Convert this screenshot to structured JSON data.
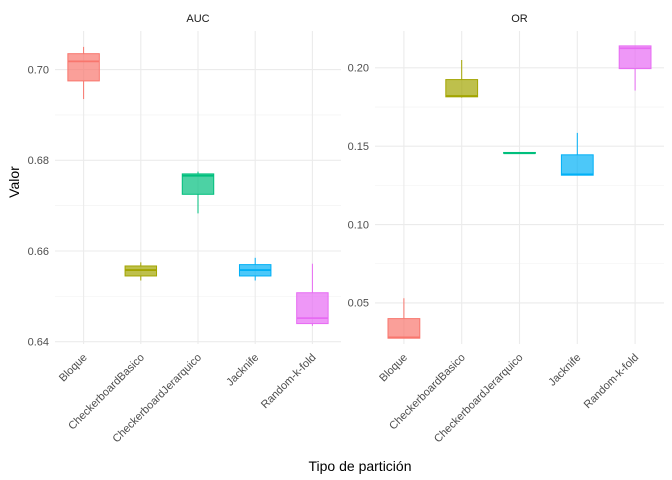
{
  "chart_data": {
    "type": "boxplot",
    "xlabel": "Tipo de partición",
    "ylabel": "Valor",
    "categories": [
      "Bloque",
      "CheckerboardBasico",
      "CheckerboardJerarquico",
      "Jacknife",
      "Random-k-fold"
    ],
    "colors": [
      "#F8766D",
      "#A3A500",
      "#00BF7D",
      "#00B0F6",
      "#E76BF3"
    ],
    "grid": true,
    "legend": "none",
    "facets": [
      {
        "title": "AUC",
        "ylim": [
          0.6395,
          0.7085
        ],
        "yticks": [
          0.64,
          0.66,
          0.68,
          0.7
        ],
        "ytick_labels": [
          "0.64",
          "0.66",
          "0.68",
          "0.70"
        ],
        "boxes": [
          {
            "category": "Bloque",
            "min": 0.6935,
            "q1": 0.6975,
            "median": 0.7018,
            "q3": 0.7035,
            "max": 0.705
          },
          {
            "category": "CheckerboardBasico",
            "min": 0.6535,
            "q1": 0.6545,
            "median": 0.6558,
            "q3": 0.6567,
            "max": 0.6575
          },
          {
            "category": "CheckerboardJerarquico",
            "min": 0.6683,
            "q1": 0.6725,
            "median": 0.6766,
            "q3": 0.677,
            "max": 0.6775
          },
          {
            "category": "Jacknife",
            "min": 0.6535,
            "q1": 0.6545,
            "median": 0.6558,
            "q3": 0.657,
            "max": 0.6585
          },
          {
            "category": "Random-k-fold",
            "min": 0.6435,
            "q1": 0.644,
            "median": 0.6452,
            "q3": 0.6508,
            "max": 0.6572
          }
        ]
      },
      {
        "title": "OR",
        "ylim": [
          0.0238,
          0.2235
        ],
        "yticks": [
          0.05,
          0.1,
          0.15,
          0.2
        ],
        "ytick_labels": [
          "0.05",
          "0.10",
          "0.15",
          "0.20"
        ],
        "boxes": [
          {
            "category": "Bloque",
            "min": 0.0275,
            "q1": 0.0275,
            "median": 0.028,
            "q3": 0.04,
            "max": 0.053
          },
          {
            "category": "CheckerboardBasico",
            "min": 0.181,
            "q1": 0.1815,
            "median": 0.182,
            "q3": 0.1925,
            "max": 0.205
          },
          {
            "category": "CheckerboardJerarquico",
            "min": 0.1455,
            "q1": 0.1455,
            "median": 0.1455,
            "q3": 0.146,
            "max": 0.146
          },
          {
            "category": "Jacknife",
            "min": 0.1315,
            "q1": 0.1315,
            "median": 0.132,
            "q3": 0.1445,
            "max": 0.1585
          },
          {
            "category": "Random-k-fold",
            "min": 0.1855,
            "q1": 0.1995,
            "median": 0.2125,
            "q3": 0.214,
            "max": 0.214
          }
        ]
      }
    ]
  }
}
